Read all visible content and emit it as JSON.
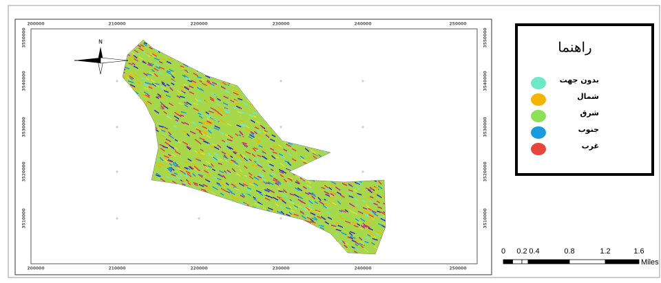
{
  "map": {
    "north": "N",
    "x_labels": [
      "200000",
      "210000",
      "220000",
      "230000",
      "240000",
      "250000"
    ],
    "y_labels": [
      "3550000",
      "3540000",
      "3530000",
      "3520000",
      "3510000"
    ]
  },
  "legend": {
    "title": "راهنما",
    "items": [
      {
        "label": "بدون جهت",
        "color": "#6fe8c8"
      },
      {
        "label": "شمال",
        "color": "#f5b400"
      },
      {
        "label": "شرق",
        "color": "#8de05a"
      },
      {
        "label": "جنوب",
        "color": "#1a9be0"
      },
      {
        "label": "غرب",
        "color": "#e8453c"
      }
    ]
  },
  "scale_bar": {
    "labels": [
      "0",
      "0.2",
      "0.4",
      "0.8",
      "1.2",
      "1.6"
    ],
    "unit": "Miles"
  }
}
